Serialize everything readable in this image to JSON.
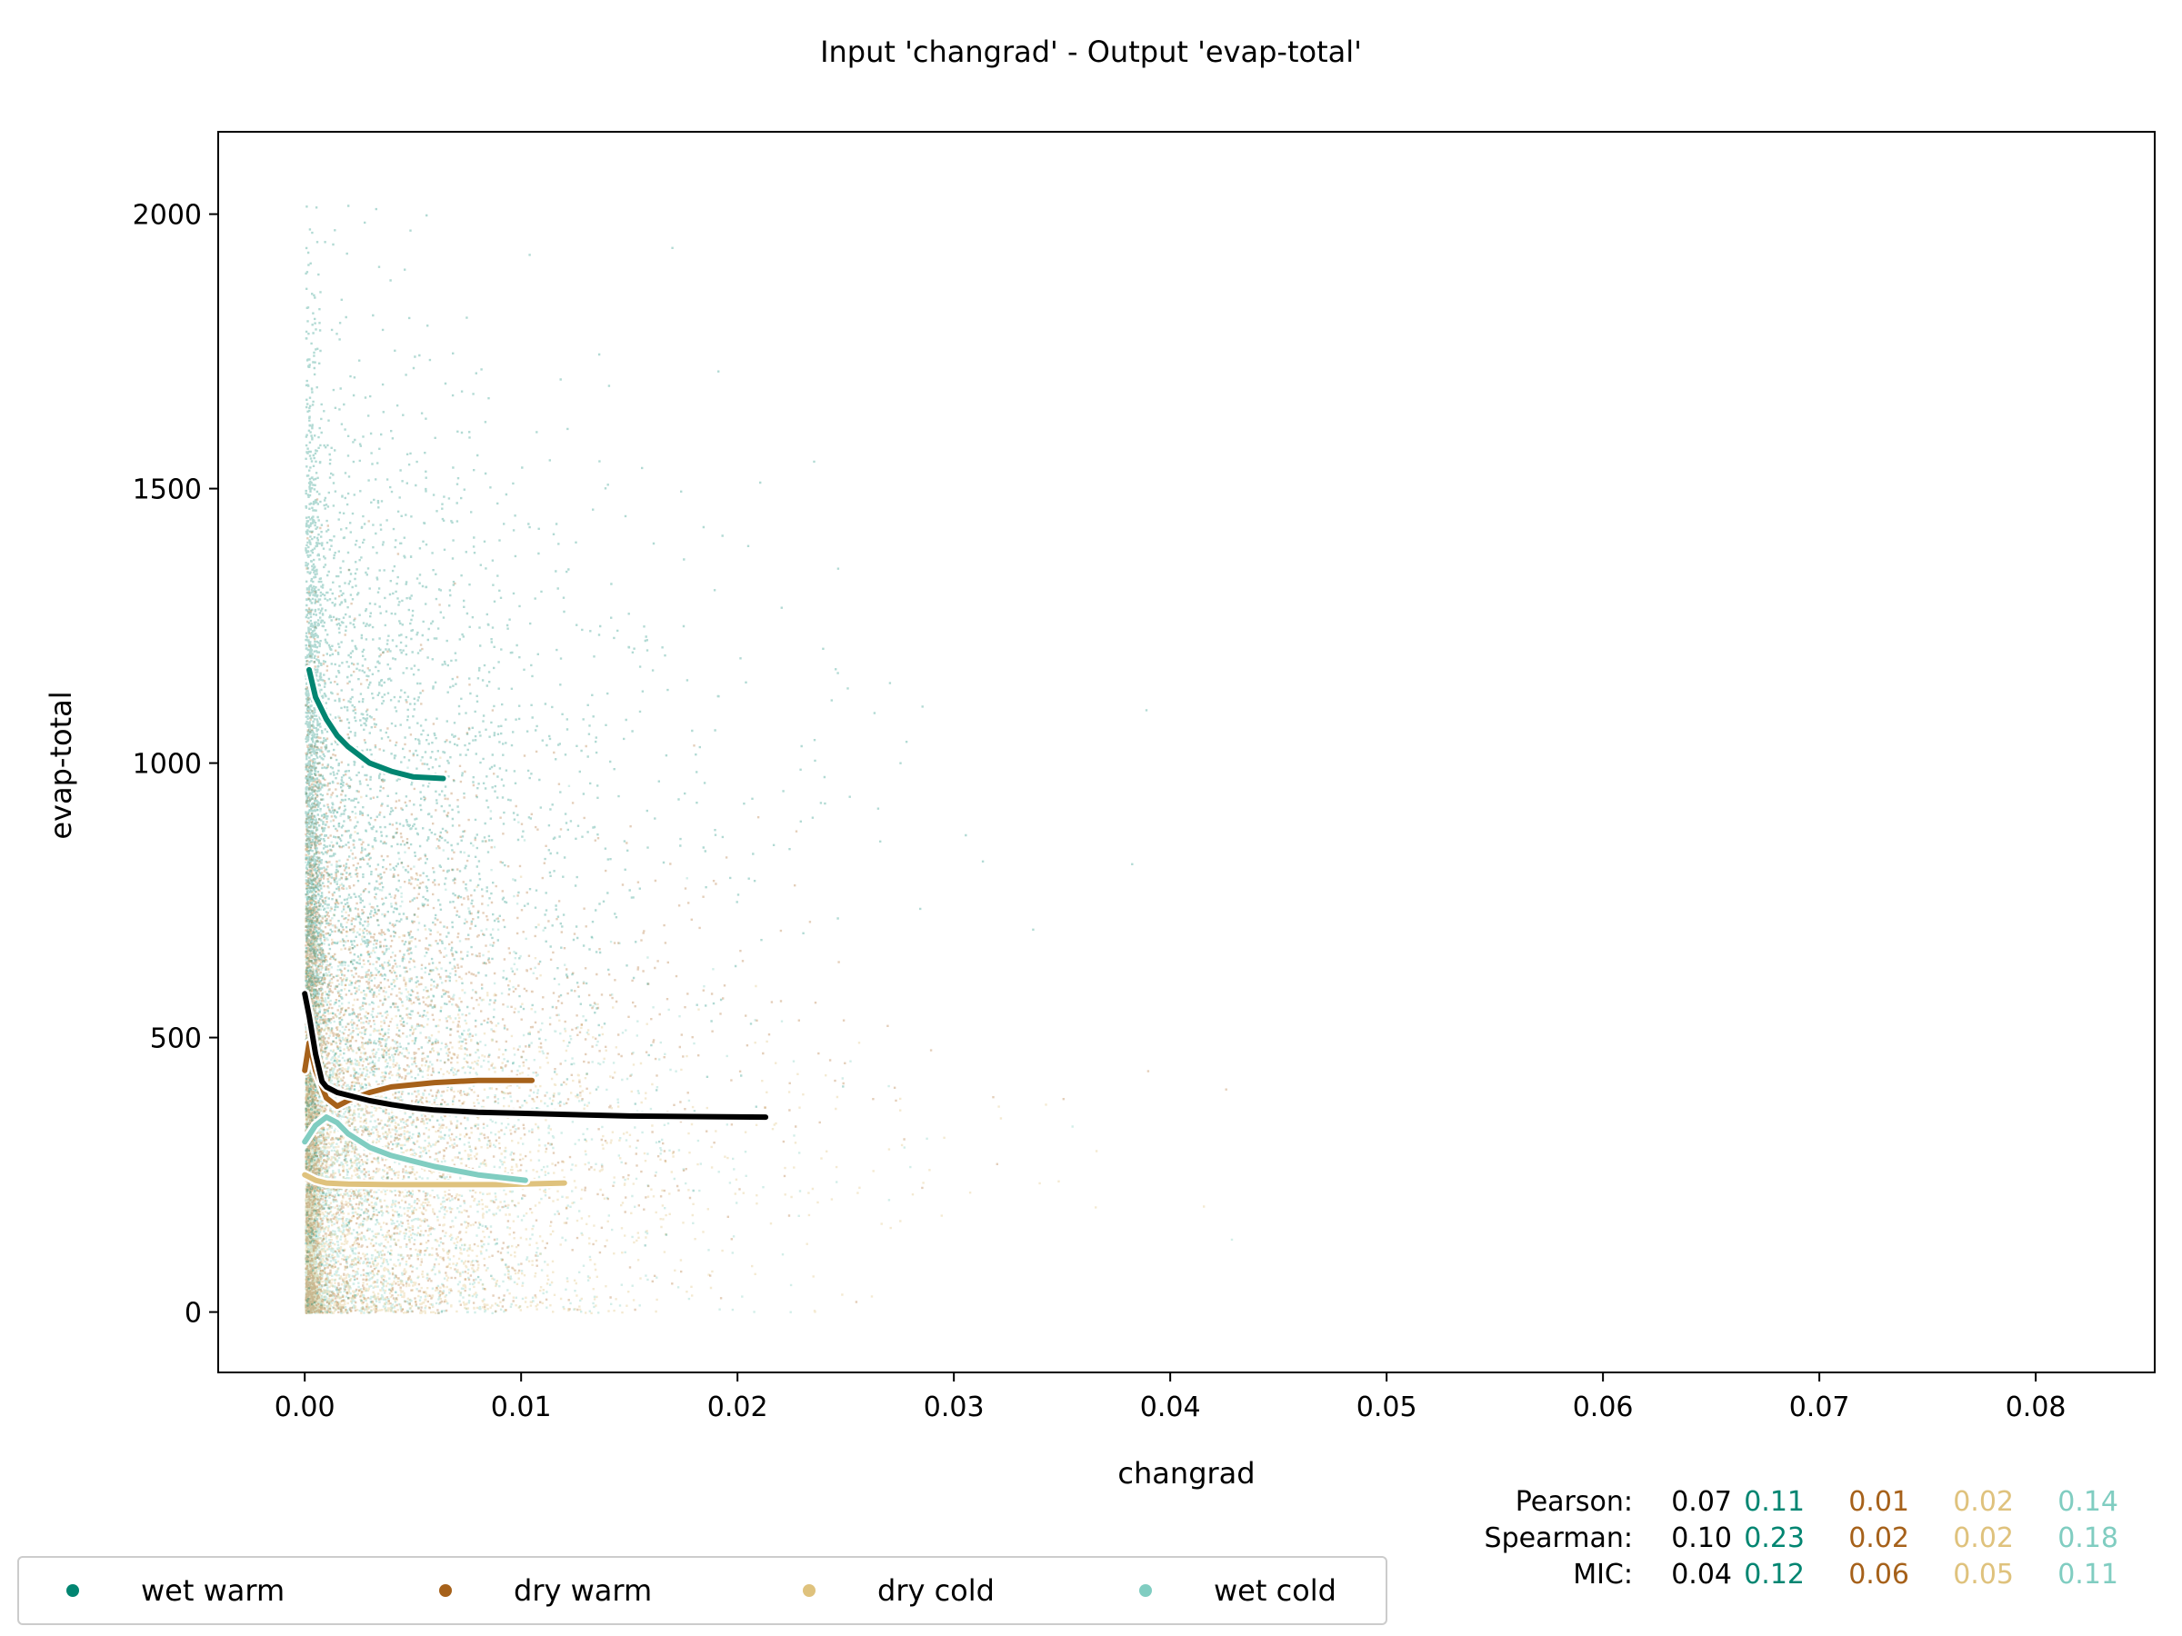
{
  "chart_data": {
    "type": "scatter",
    "title": "Input 'changrad' - Output 'evap-total'",
    "xlabel": "changrad",
    "ylabel": "evap-total",
    "xlim": [
      -0.004,
      0.0855
    ],
    "ylim": [
      -110,
      2150
    ],
    "xticks": [
      0.0,
      0.01,
      0.02,
      0.03,
      0.04,
      0.05,
      0.06,
      0.07,
      0.08
    ],
    "xtick_labels": [
      "0.00",
      "0.01",
      "0.02",
      "0.03",
      "0.04",
      "0.05",
      "0.06",
      "0.07",
      "0.08"
    ],
    "yticks": [
      0,
      500,
      1000,
      1500,
      2000
    ],
    "ytick_labels": [
      "0",
      "500",
      "1000",
      "1500",
      "2000"
    ],
    "grid": false,
    "legend_position": "bottom-left, below plot",
    "series": [
      {
        "name": "wet warm",
        "color": "#018571",
        "trend": [
          [
            0.0002,
            1170
          ],
          [
            0.0005,
            1120
          ],
          [
            0.001,
            1080
          ],
          [
            0.0015,
            1050
          ],
          [
            0.002,
            1030
          ],
          [
            0.003,
            1000
          ],
          [
            0.004,
            985
          ],
          [
            0.005,
            975
          ],
          [
            0.0064,
            972
          ]
        ]
      },
      {
        "name": "dry warm",
        "color": "#a6611a",
        "trend": [
          [
            0.0,
            440
          ],
          [
            0.0002,
            490
          ],
          [
            0.0005,
            440
          ],
          [
            0.001,
            390
          ],
          [
            0.0015,
            375
          ],
          [
            0.002,
            385
          ],
          [
            0.003,
            400
          ],
          [
            0.004,
            410
          ],
          [
            0.006,
            418
          ],
          [
            0.008,
            422
          ],
          [
            0.0105,
            422
          ]
        ]
      },
      {
        "name": "dry cold",
        "color": "#dfc27d",
        "trend": [
          [
            0.0,
            250
          ],
          [
            0.0005,
            240
          ],
          [
            0.001,
            235
          ],
          [
            0.002,
            233
          ],
          [
            0.004,
            232
          ],
          [
            0.006,
            232
          ],
          [
            0.009,
            232
          ],
          [
            0.012,
            235
          ]
        ]
      },
      {
        "name": "wet cold",
        "color": "#80cdc1",
        "trend": [
          [
            0.0,
            310
          ],
          [
            0.0005,
            340
          ],
          [
            0.001,
            355
          ],
          [
            0.0015,
            345
          ],
          [
            0.002,
            325
          ],
          [
            0.003,
            300
          ],
          [
            0.004,
            285
          ],
          [
            0.005,
            275
          ],
          [
            0.006,
            265
          ],
          [
            0.008,
            250
          ],
          [
            0.0102,
            240
          ]
        ]
      }
    ],
    "overall_trend": {
      "color": "#000000",
      "points": [
        [
          0.0,
          580
        ],
        [
          0.0002,
          540
        ],
        [
          0.0005,
          470
        ],
        [
          0.0008,
          420
        ],
        [
          0.001,
          410
        ],
        [
          0.0015,
          400
        ],
        [
          0.002,
          395
        ],
        [
          0.003,
          385
        ],
        [
          0.004,
          378
        ],
        [
          0.005,
          372
        ],
        [
          0.006,
          368
        ],
        [
          0.008,
          364
        ],
        [
          0.01,
          362
        ],
        [
          0.012,
          360
        ],
        [
          0.015,
          357
        ],
        [
          0.018,
          356
        ],
        [
          0.0213,
          355
        ]
      ]
    },
    "stats": {
      "rows": [
        {
          "label": "Pearson:",
          "values": [
            "0.07",
            "0.11",
            "0.01",
            "0.02",
            "0.14"
          ]
        },
        {
          "label": "Spearman:",
          "values": [
            "0.10",
            "0.23",
            "0.02",
            "0.02",
            "0.18"
          ]
        },
        {
          "label": "MIC:",
          "values": [
            "0.04",
            "0.12",
            "0.06",
            "0.05",
            "0.11"
          ]
        }
      ],
      "column_colors": [
        "#000000",
        "#018571",
        "#a6611a",
        "#dfc27d",
        "#80cdc1"
      ]
    }
  }
}
